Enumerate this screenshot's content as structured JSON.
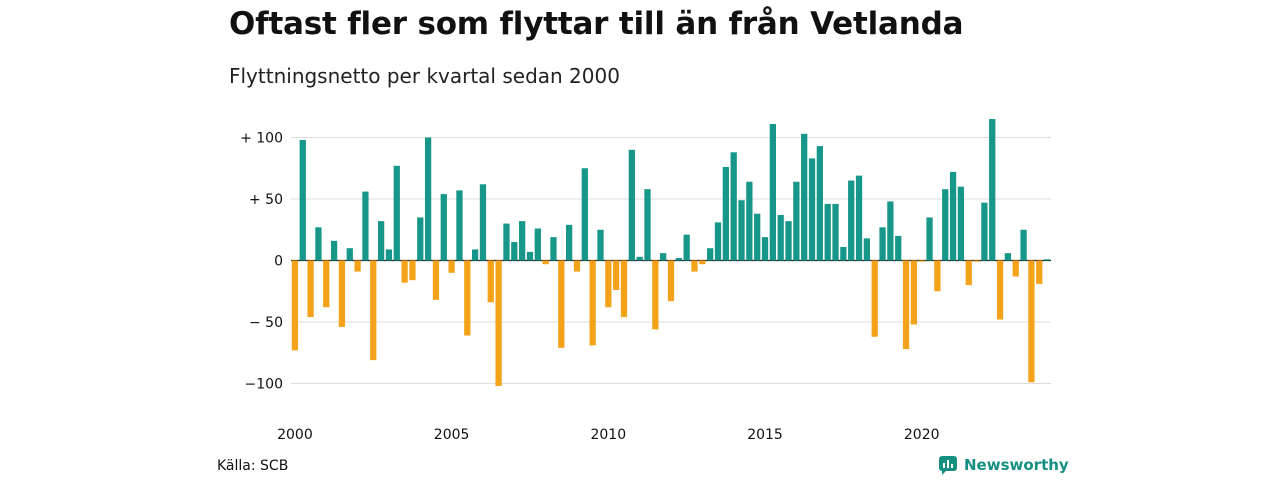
{
  "title": "Oftast fler som flyttar till än från Vetlanda",
  "subtitle": "Flyttningsnetto per kvartal sedan 2000",
  "source": "Källa: SCB",
  "brand": {
    "name": "Newsworthy",
    "icon": "newsworthy-logo-icon"
  },
  "colors": {
    "positive": "#17978a",
    "negative": "#f5a21b",
    "grid": "#dddddd",
    "zero": "#222222",
    "brand": "#159080"
  },
  "chart_data": {
    "type": "bar",
    "title": "Oftast fler som flyttar till än från Vetlanda",
    "subtitle": "Flyttningsnetto per kvartal sedan 2000",
    "xlabel": "",
    "ylabel": "",
    "ylim": [
      -110,
      115
    ],
    "grid": true,
    "legend": "none",
    "y_ticks": [
      {
        "value": 100,
        "label": "+ 100"
      },
      {
        "value": 50,
        "label": "+  50"
      },
      {
        "value": 0,
        "label": "0"
      },
      {
        "value": -50,
        "label": "− 50"
      },
      {
        "value": -100,
        "label": "−100"
      }
    ],
    "x_ticks": [
      {
        "year": 2000,
        "label": "2000"
      },
      {
        "year": 2005,
        "label": "2005"
      },
      {
        "year": 2010,
        "label": "2010"
      },
      {
        "year": 2015,
        "label": "2015"
      },
      {
        "year": 2020,
        "label": "2020"
      }
    ],
    "start": "2000 Q1",
    "values": [
      -73,
      98,
      -46,
      27,
      -38,
      16,
      -54,
      10,
      -9,
      56,
      -81,
      32,
      9,
      77,
      -18,
      -16,
      35,
      100,
      -32,
      54,
      -10,
      57,
      -61,
      9,
      62,
      -34,
      -102,
      30,
      15,
      32,
      7,
      26,
      -3,
      19,
      -71,
      29,
      -9,
      75,
      -69,
      25,
      -38,
      -24,
      -46,
      90,
      3,
      58,
      -56,
      6,
      -33,
      2,
      21,
      -9,
      -3,
      10,
      31,
      76,
      88,
      49,
      64,
      38,
      19,
      111,
      37,
      32,
      64,
      103,
      83,
      93,
      46,
      46,
      11,
      65,
      69,
      18,
      -62,
      27,
      48,
      20,
      -72,
      -52,
      -1,
      35,
      -25,
      58,
      72,
      60,
      -20,
      -1,
      47,
      115,
      -48,
      6,
      -13,
      25,
      -99,
      -19,
      1
    ]
  }
}
